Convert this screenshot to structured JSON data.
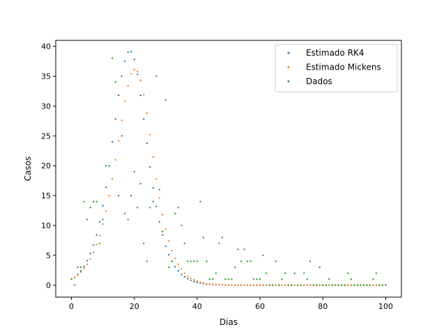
{
  "chart_data": {
    "type": "scatter",
    "title": "",
    "xlabel": "Dias",
    "ylabel": "Casos",
    "xlim": [
      -5,
      105
    ],
    "ylim": [
      -2,
      41
    ],
    "xticks": [
      0,
      20,
      40,
      60,
      80,
      100
    ],
    "yticks": [
      0,
      5,
      10,
      15,
      20,
      25,
      30,
      35,
      40
    ],
    "legend_position": "top-right",
    "series": [
      {
        "name": "Estimado RK4",
        "color": "#1f77b4",
        "x": [
          0,
          1,
          2,
          3,
          4,
          5,
          6,
          7,
          8,
          9,
          10,
          11,
          12,
          13,
          14,
          15,
          16,
          17,
          18,
          19,
          20,
          21,
          22,
          23,
          24,
          25,
          26,
          27,
          28,
          29,
          30,
          31,
          32,
          33,
          34,
          35,
          36,
          37,
          38,
          39,
          40,
          41,
          42,
          43,
          44,
          45,
          46,
          47,
          48,
          49,
          50,
          51,
          52,
          53,
          54,
          55,
          56,
          57,
          58,
          59,
          60,
          61,
          62,
          63,
          64,
          65,
          66,
          67,
          68,
          69,
          70,
          71,
          72,
          73,
          74,
          75,
          76,
          77,
          78,
          79,
          80,
          81,
          82,
          83,
          84,
          85,
          86,
          87,
          88,
          89,
          90,
          91,
          92,
          93,
          94,
          95,
          96,
          97,
          98,
          99,
          100
        ],
        "y": [
          1.0,
          1.3,
          1.8,
          2.4,
          3.1,
          4.1,
          5.3,
          6.7,
          8.4,
          10.6,
          13.3,
          16.4,
          20.0,
          24.0,
          27.8,
          31.8,
          35.0,
          37.5,
          39.0,
          39.1,
          37.8,
          35.3,
          31.8,
          27.8,
          23.8,
          19.8,
          16.3,
          13.2,
          10.6,
          8.4,
          6.5,
          5.1,
          4.0,
          3.1,
          2.4,
          1.8,
          1.4,
          1.1,
          0.8,
          0.6,
          0.45,
          0.34,
          0.25,
          0.18,
          0.13,
          0.1,
          0.07,
          0.05,
          0.03,
          0.02,
          0.01,
          0,
          0,
          0,
          0,
          0,
          0,
          0,
          0,
          0,
          0,
          0,
          0,
          0,
          0,
          0,
          0,
          0,
          0,
          0,
          0,
          0,
          0,
          0,
          0,
          0,
          0,
          0,
          0,
          0,
          0,
          0,
          0,
          0,
          0,
          0,
          0,
          0,
          0,
          0,
          0,
          0,
          0,
          0,
          0,
          0,
          0,
          0,
          0,
          0,
          0
        ]
      },
      {
        "name": "Estimado Mickens",
        "color": "#ff7f0e",
        "x": [
          0,
          1,
          2,
          3,
          4,
          5,
          6,
          7,
          8,
          9,
          10,
          11,
          12,
          13,
          14,
          15,
          16,
          17,
          18,
          19,
          20,
          21,
          22,
          23,
          24,
          25,
          26,
          27,
          28,
          29,
          30,
          31,
          32,
          33,
          34,
          35,
          36,
          37,
          38,
          39,
          40,
          41,
          42,
          43,
          44,
          45,
          46,
          47,
          48,
          49,
          50,
          51,
          52,
          53,
          54,
          55,
          56,
          57,
          58,
          59,
          60,
          61,
          62,
          63,
          64,
          65,
          66,
          67,
          68,
          69,
          70,
          71,
          72,
          73,
          74,
          75,
          76,
          77,
          78,
          79,
          80,
          81,
          82,
          83,
          84,
          85,
          86,
          87,
          88,
          89,
          90,
          91,
          92,
          93,
          94,
          95,
          96,
          97,
          98,
          99,
          100
        ],
        "y": [
          1.0,
          1.3,
          1.7,
          2.2,
          2.8,
          3.5,
          4.4,
          5.5,
          6.8,
          8.3,
          10.2,
          12.4,
          15.0,
          17.8,
          21.0,
          24.2,
          27.6,
          30.8,
          33.4,
          35.4,
          36.1,
          35.8,
          34.3,
          31.9,
          28.8,
          25.2,
          21.5,
          17.8,
          14.6,
          11.8,
          9.4,
          7.4,
          5.8,
          4.5,
          3.5,
          2.7,
          2.0,
          1.5,
          1.2,
          0.9,
          0.65,
          0.48,
          0.36,
          0.26,
          0.19,
          0.14,
          0.1,
          0.07,
          0.05,
          0.03,
          0.02,
          0.01,
          0,
          0,
          0,
          0,
          0,
          0,
          0,
          0,
          0,
          0,
          0,
          0,
          0,
          0,
          0,
          0,
          0,
          0,
          0,
          0,
          0,
          0,
          0,
          0,
          0,
          0,
          0,
          0,
          0,
          0,
          0,
          0,
          0,
          0,
          0,
          0,
          0,
          0,
          0,
          0,
          0,
          0,
          0,
          0,
          0,
          0,
          0,
          0,
          0
        ]
      },
      {
        "name": "Dados",
        "color": "#2ca02c",
        "x": [
          0,
          1,
          2,
          3,
          4,
          5,
          6,
          7,
          8,
          9,
          10,
          11,
          12,
          13,
          14,
          15,
          16,
          17,
          18,
          19,
          20,
          21,
          22,
          23,
          24,
          25,
          26,
          27,
          28,
          29,
          30,
          31,
          32,
          33,
          34,
          35,
          36,
          37,
          38,
          39,
          40,
          41,
          42,
          43,
          44,
          45,
          46,
          47,
          48,
          49,
          50,
          51,
          52,
          53,
          54,
          55,
          56,
          57,
          58,
          59,
          60,
          61,
          62,
          63,
          64,
          65,
          66,
          67,
          68,
          69,
          70,
          71,
          72,
          73,
          74,
          75,
          76,
          77,
          78,
          79,
          80,
          81,
          82,
          83,
          84,
          85,
          86,
          87,
          88,
          89,
          90,
          91,
          92,
          93,
          94,
          95,
          96,
          97,
          98,
          99,
          100
        ],
        "y": [
          1,
          0,
          3,
          3,
          14,
          11,
          13,
          14,
          14,
          7,
          11,
          20,
          20,
          38,
          34,
          15,
          25,
          12,
          11,
          15,
          19,
          13,
          17,
          7,
          4,
          13,
          14,
          35,
          16,
          9,
          31,
          3,
          4,
          12,
          13,
          10,
          7,
          4,
          4,
          4,
          4,
          14,
          8,
          4,
          1,
          1,
          2,
          7,
          8,
          1,
          1,
          1,
          3,
          6,
          4,
          6,
          4,
          4,
          1,
          1,
          1,
          5,
          2,
          0,
          0,
          4,
          0,
          1,
          2,
          0,
          0,
          2,
          0,
          0,
          2,
          1,
          4,
          0,
          0,
          3,
          0,
          0,
          1,
          0,
          0,
          0,
          0,
          0,
          2,
          1,
          0,
          0,
          0,
          0,
          0,
          0,
          1,
          2,
          0,
          0,
          0
        ]
      }
    ]
  }
}
